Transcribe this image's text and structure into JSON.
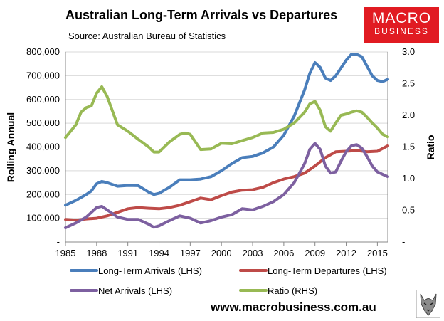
{
  "header": {
    "title": "Australian Long-Term Arrivals vs Departures",
    "source": "Source: Australian Bureau of Statistics"
  },
  "logo": {
    "line1": "MACRO",
    "line2": "BUSINESS"
  },
  "footer": {
    "website": "www.macrobusiness.com.au"
  },
  "colors": {
    "arrivals": "#4a7ebb",
    "departures": "#be4b48",
    "net": "#7d60a0",
    "ratio": "#98b954"
  },
  "chart_data": {
    "type": "line",
    "ylabel": "Rolling Annual",
    "y2label": "Ratio",
    "ylim": [
      0,
      800000
    ],
    "y2lim": [
      0,
      3.0
    ],
    "xlim": [
      1985,
      2016
    ],
    "x_ticks": [
      "1985",
      "1988",
      "1991",
      "1994",
      "1997",
      "2000",
      "2003",
      "2006",
      "2009",
      "2012",
      "2015"
    ],
    "y_ticks": [
      "-",
      "100,000",
      "200,000",
      "300,000",
      "400,000",
      "500,000",
      "600,000",
      "700,000",
      "800,000"
    ],
    "y2_ticks": [
      "-",
      "0.5",
      "1.0",
      "1.5",
      "2.0",
      "2.5",
      "3.0"
    ],
    "grid": true,
    "legend_position": "bottom",
    "series": [
      {
        "name": "Long-Term Arrivals (LHS)",
        "axis": "left",
        "color": "#4a7ebb",
        "x": [
          1985,
          1986,
          1987,
          1987.5,
          1988,
          1988.5,
          1989,
          1990,
          1991,
          1992,
          1993,
          1993.5,
          1994,
          1995,
          1996,
          1997,
          1998,
          1999,
          2000,
          2001,
          2002,
          2003,
          2004,
          2005,
          2006,
          2007,
          2008,
          2008.5,
          2009,
          2009.5,
          2010,
          2010.5,
          2011,
          2012,
          2012.5,
          2013,
          2013.5,
          2014,
          2014.5,
          2015,
          2015.5,
          2016
        ],
        "y": [
          155000,
          175000,
          200000,
          215000,
          245000,
          255000,
          250000,
          235000,
          238000,
          237000,
          210000,
          200000,
          205000,
          230000,
          262000,
          262000,
          265000,
          275000,
          300000,
          330000,
          355000,
          360000,
          375000,
          400000,
          450000,
          530000,
          640000,
          710000,
          755000,
          735000,
          690000,
          680000,
          700000,
          765000,
          790000,
          790000,
          780000,
          740000,
          700000,
          680000,
          675000,
          685000
        ]
      },
      {
        "name": "Long-Term Departures (LHS)",
        "axis": "left",
        "color": "#be4b48",
        "x": [
          1985,
          1986,
          1987,
          1988,
          1989,
          1990,
          1991,
          1992,
          1993,
          1994,
          1995,
          1996,
          1997,
          1998,
          1999,
          2000,
          2001,
          2002,
          2003,
          2004,
          2005,
          2006,
          2007,
          2008,
          2009,
          2010,
          2011,
          2012,
          2013,
          2014,
          2015,
          2016
        ],
        "y": [
          95000,
          92000,
          97000,
          100000,
          110000,
          125000,
          140000,
          145000,
          142000,
          140000,
          145000,
          155000,
          170000,
          185000,
          178000,
          195000,
          210000,
          218000,
          220000,
          230000,
          250000,
          265000,
          275000,
          290000,
          320000,
          355000,
          380000,
          382000,
          385000,
          380000,
          382000,
          405000
        ]
      },
      {
        "name": "Net Arrivals (LHS)",
        "axis": "left",
        "color": "#7d60a0",
        "x": [
          1985,
          1986,
          1987,
          1988,
          1988.5,
          1989,
          1990,
          1991,
          1992,
          1993,
          1993.5,
          1994,
          1995,
          1996,
          1997,
          1998,
          1999,
          2000,
          2001,
          2002,
          2003,
          2004,
          2005,
          2006,
          2007,
          2008,
          2008.5,
          2009,
          2009.5,
          2010,
          2010.5,
          2011,
          2011.5,
          2012,
          2012.5,
          2013,
          2013.5,
          2014,
          2014.5,
          2015,
          2015.5,
          2016
        ],
        "y": [
          60000,
          80000,
          105000,
          145000,
          150000,
          135000,
          105000,
          95000,
          95000,
          75000,
          62000,
          68000,
          90000,
          110000,
          100000,
          80000,
          90000,
          105000,
          115000,
          140000,
          135000,
          150000,
          170000,
          200000,
          250000,
          330000,
          390000,
          415000,
          390000,
          320000,
          290000,
          295000,
          340000,
          380000,
          405000,
          410000,
          395000,
          360000,
          320000,
          295000,
          285000,
          275000
        ]
      },
      {
        "name": "Ratio (RHS)",
        "axis": "right",
        "color": "#98b954",
        "x": [
          1985,
          1986,
          1986.5,
          1987,
          1987.5,
          1988,
          1988.5,
          1989,
          1990,
          1991,
          1992,
          1993,
          1993.5,
          1994,
          1995,
          1996,
          1996.5,
          1997,
          1998,
          1999,
          2000,
          2001,
          2002,
          2003,
          2004,
          2005,
          2006,
          2007,
          2008,
          2008.5,
          2009,
          2009.5,
          2010,
          2010.5,
          2011,
          2011.5,
          2012,
          2012.5,
          2013,
          2013.5,
          2014,
          2014.5,
          2015,
          2015.5,
          2016
        ],
        "y": [
          1.65,
          1.85,
          2.05,
          2.12,
          2.15,
          2.35,
          2.45,
          2.3,
          1.85,
          1.75,
          1.62,
          1.5,
          1.42,
          1.42,
          1.58,
          1.7,
          1.72,
          1.7,
          1.46,
          1.47,
          1.56,
          1.55,
          1.6,
          1.65,
          1.72,
          1.73,
          1.78,
          1.88,
          2.05,
          2.18,
          2.22,
          2.08,
          1.82,
          1.75,
          1.88,
          2.0,
          2.02,
          2.05,
          2.07,
          2.05,
          1.97,
          1.88,
          1.8,
          1.7,
          1.66
        ]
      }
    ]
  }
}
